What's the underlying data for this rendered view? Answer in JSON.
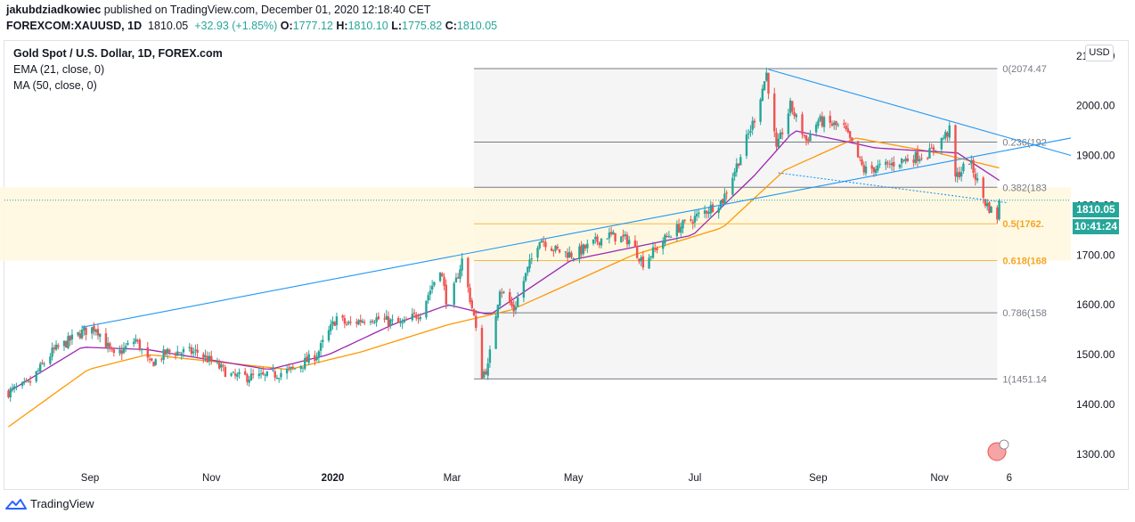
{
  "header": {
    "author": "jakubdziadkowiec",
    "published": "published on TradingView.com, December 01, 2020 12:18:40 CET",
    "symbol": "FOREXCOM:XAUUSD, 1D",
    "price": "1810.05",
    "change": "+32.93 (+1.85%)",
    "o_label": "O:",
    "o_value": "1777.12",
    "h_label": "H:",
    "h_value": "1810.10",
    "l_label": "L:",
    "l_value": "1775.82",
    "c_label": "C:",
    "c_value": "1810.05"
  },
  "legend": {
    "title": "Gold Spot / U.S. Dollar, 1D, FOREX.com",
    "ema": "EMA (21, close, 0)",
    "ma": "MA (50, close, 0)"
  },
  "currency_button": "USD",
  "price_tag": "1810.05",
  "time_tag": "10:41:24",
  "footer": {
    "brand": "TradingView"
  },
  "colors": {
    "up": "#26a69a",
    "down": "#ef5350",
    "ema": "#9c27b0",
    "ma": "#ff9800",
    "trend": "#2196f3",
    "fib_zone": "#f5f5f5",
    "fib_gold_zone": "#fff8e1"
  },
  "chart_data": {
    "type": "candlestick",
    "title": "Gold Spot / U.S. Dollar, 1D, FOREX.com",
    "ylim": [
      1280,
      2130
    ],
    "yticks": [
      "1300.00",
      "1400.00",
      "1500.00",
      "1600.00",
      "1700.00",
      "1800.00",
      "1900.00",
      "2000.00",
      "2100.00"
    ],
    "xticks": [
      "Sep",
      "Nov",
      "2020",
      "Mar",
      "May",
      "Jul",
      "Sep",
      "Nov",
      "6"
    ],
    "xrange": [
      "2019-07-20",
      "2021-01-06"
    ],
    "last_price": 1810.05,
    "fib_levels": [
      {
        "label": "0(2074.47",
        "value": 2074.47
      },
      {
        "label": "0.236(192",
        "value": 1927
      },
      {
        "label": "0.382(183",
        "value": 1836
      },
      {
        "label": "0.5(1762.",
        "value": 1762.8
      },
      {
        "label": "0.618(168",
        "value": 1689
      },
      {
        "label": "0.786(158",
        "value": 1584
      },
      {
        "label": "1(1451.14",
        "value": 1451.14
      }
    ],
    "fib_range": [
      "2020-03-12",
      "2020-11-30"
    ],
    "trendlines": [
      {
        "from": [
          "2019-08-28",
          1555
        ],
        "to": [
          "2021-01-06",
          1935
        ]
      },
      {
        "from": [
          "2020-08-07",
          2073
        ],
        "to": [
          "2021-01-06",
          1900
        ]
      },
      {
        "from": [
          "2020-08-12",
          1865
        ],
        "to": [
          "2020-12-05",
          1805
        ],
        "dotted": true
      }
    ],
    "close_keypoints": [
      [
        "2019-07-22",
        1425
      ],
      [
        "2019-08-01",
        1440
      ],
      [
        "2019-08-13",
        1505
      ],
      [
        "2019-08-28",
        1545
      ],
      [
        "2019-09-04",
        1555
      ],
      [
        "2019-09-13",
        1495
      ],
      [
        "2019-09-24",
        1530
      ],
      [
        "2019-10-01",
        1480
      ],
      [
        "2019-10-10",
        1505
      ],
      [
        "2019-10-25",
        1505
      ],
      [
        "2019-11-12",
        1455
      ],
      [
        "2019-11-28",
        1455
      ],
      [
        "2019-12-12",
        1470
      ],
      [
        "2019-12-24",
        1500
      ],
      [
        "2020-01-03",
        1575
      ],
      [
        "2020-01-08",
        1560
      ],
      [
        "2020-01-20",
        1575
      ],
      [
        "2020-02-05",
        1560
      ],
      [
        "2020-02-14",
        1585
      ],
      [
        "2020-02-24",
        1675
      ],
      [
        "2020-02-28",
        1590
      ],
      [
        "2020-03-06",
        1690
      ],
      [
        "2020-03-12",
        1575
      ],
      [
        "2020-03-16",
        1460
      ],
      [
        "2020-03-19",
        1475
      ],
      [
        "2020-03-25",
        1635
      ],
      [
        "2020-04-01",
        1590
      ],
      [
        "2020-04-07",
        1660
      ],
      [
        "2020-04-14",
        1735
      ],
      [
        "2020-04-22",
        1710
      ],
      [
        "2020-05-01",
        1700
      ],
      [
        "2020-05-18",
        1740
      ],
      [
        "2020-05-29",
        1730
      ],
      [
        "2020-06-05",
        1685
      ],
      [
        "2020-06-19",
        1745
      ],
      [
        "2020-07-01",
        1775
      ],
      [
        "2020-07-15",
        1810
      ],
      [
        "2020-07-24",
        1900
      ],
      [
        "2020-07-31",
        1975
      ],
      [
        "2020-08-06",
        2065
      ],
      [
        "2020-08-11",
        1910
      ],
      [
        "2020-08-18",
        2000
      ],
      [
        "2020-08-26",
        1930
      ],
      [
        "2020-09-01",
        1970
      ],
      [
        "2020-09-14",
        1955
      ],
      [
        "2020-09-24",
        1870
      ],
      [
        "2020-10-06",
        1880
      ],
      [
        "2020-10-13",
        1890
      ],
      [
        "2020-10-27",
        1905
      ],
      [
        "2020-11-06",
        1950
      ],
      [
        "2020-11-09",
        1855
      ],
      [
        "2020-11-16",
        1890
      ],
      [
        "2020-11-24",
        1805
      ],
      [
        "2020-11-27",
        1790
      ],
      [
        "2020-11-30",
        1777
      ],
      [
        "2020-12-01",
        1810
      ]
    ],
    "ema21_keypoints": [
      [
        "2019-07-22",
        1425
      ],
      [
        "2019-08-28",
        1515
      ],
      [
        "2019-09-30",
        1510
      ],
      [
        "2019-11-30",
        1470
      ],
      [
        "2019-12-30",
        1500
      ],
      [
        "2020-01-31",
        1560
      ],
      [
        "2020-02-28",
        1600
      ],
      [
        "2020-03-20",
        1580
      ],
      [
        "2020-04-30",
        1690
      ],
      [
        "2020-06-30",
        1740
      ],
      [
        "2020-07-31",
        1860
      ],
      [
        "2020-08-20",
        1950
      ],
      [
        "2020-09-30",
        1915
      ],
      [
        "2020-11-10",
        1905
      ],
      [
        "2020-12-01",
        1850
      ]
    ],
    "ma50_keypoints": [
      [
        "2019-07-22",
        1355
      ],
      [
        "2019-08-31",
        1470
      ],
      [
        "2019-09-30",
        1500
      ],
      [
        "2019-12-10",
        1470
      ],
      [
        "2020-01-15",
        1505
      ],
      [
        "2020-02-28",
        1560
      ],
      [
        "2020-03-31",
        1590
      ],
      [
        "2020-05-31",
        1700
      ],
      [
        "2020-07-15",
        1755
      ],
      [
        "2020-08-15",
        1870
      ],
      [
        "2020-09-20",
        1935
      ],
      [
        "2020-10-31",
        1905
      ],
      [
        "2020-12-01",
        1875
      ]
    ]
  }
}
